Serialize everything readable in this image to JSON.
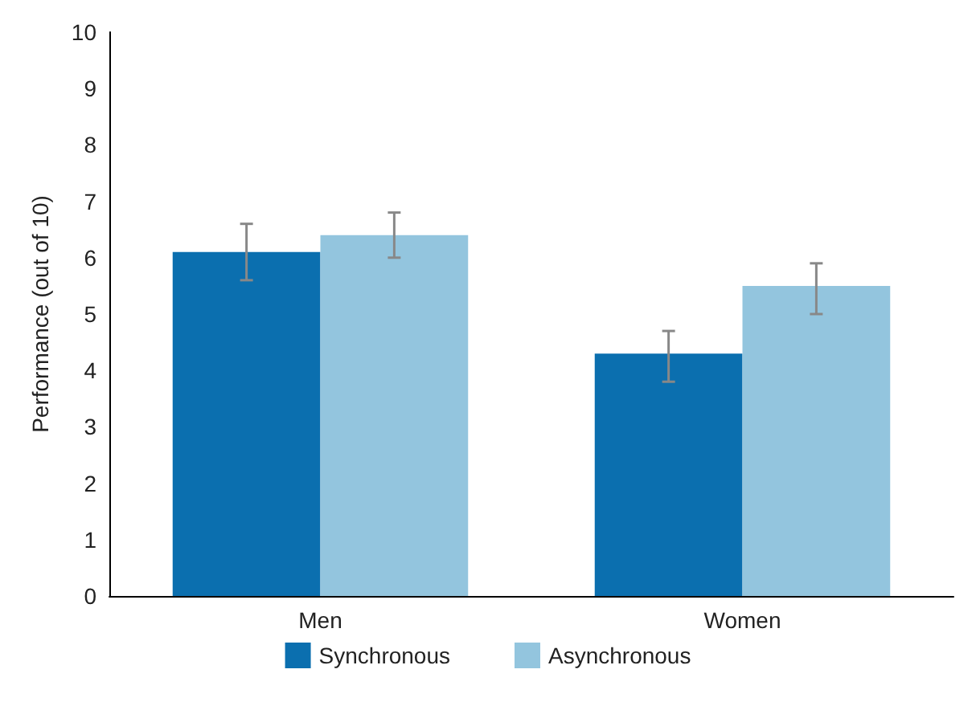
{
  "chart_data": {
    "type": "bar",
    "ylabel": "Performance (out of 10)",
    "categories": [
      "Men",
      "Women"
    ],
    "series": [
      {
        "name": "Synchronous",
        "color": "#0b6faf",
        "values": [
          6.1,
          4.3
        ],
        "errors": [
          [
            5.6,
            6.6
          ],
          [
            3.8,
            4.7
          ]
        ]
      },
      {
        "name": "Asynchronous",
        "color": "#93c5de",
        "values": [
          6.4,
          5.5
        ],
        "errors": [
          [
            6.0,
            6.8
          ],
          [
            5.0,
            5.9
          ]
        ]
      }
    ],
    "ylim": [
      0,
      10
    ],
    "yticks": [
      0,
      1,
      2,
      3,
      4,
      5,
      6,
      7,
      8,
      9,
      10
    ],
    "grid": false,
    "legend": "bottom"
  }
}
